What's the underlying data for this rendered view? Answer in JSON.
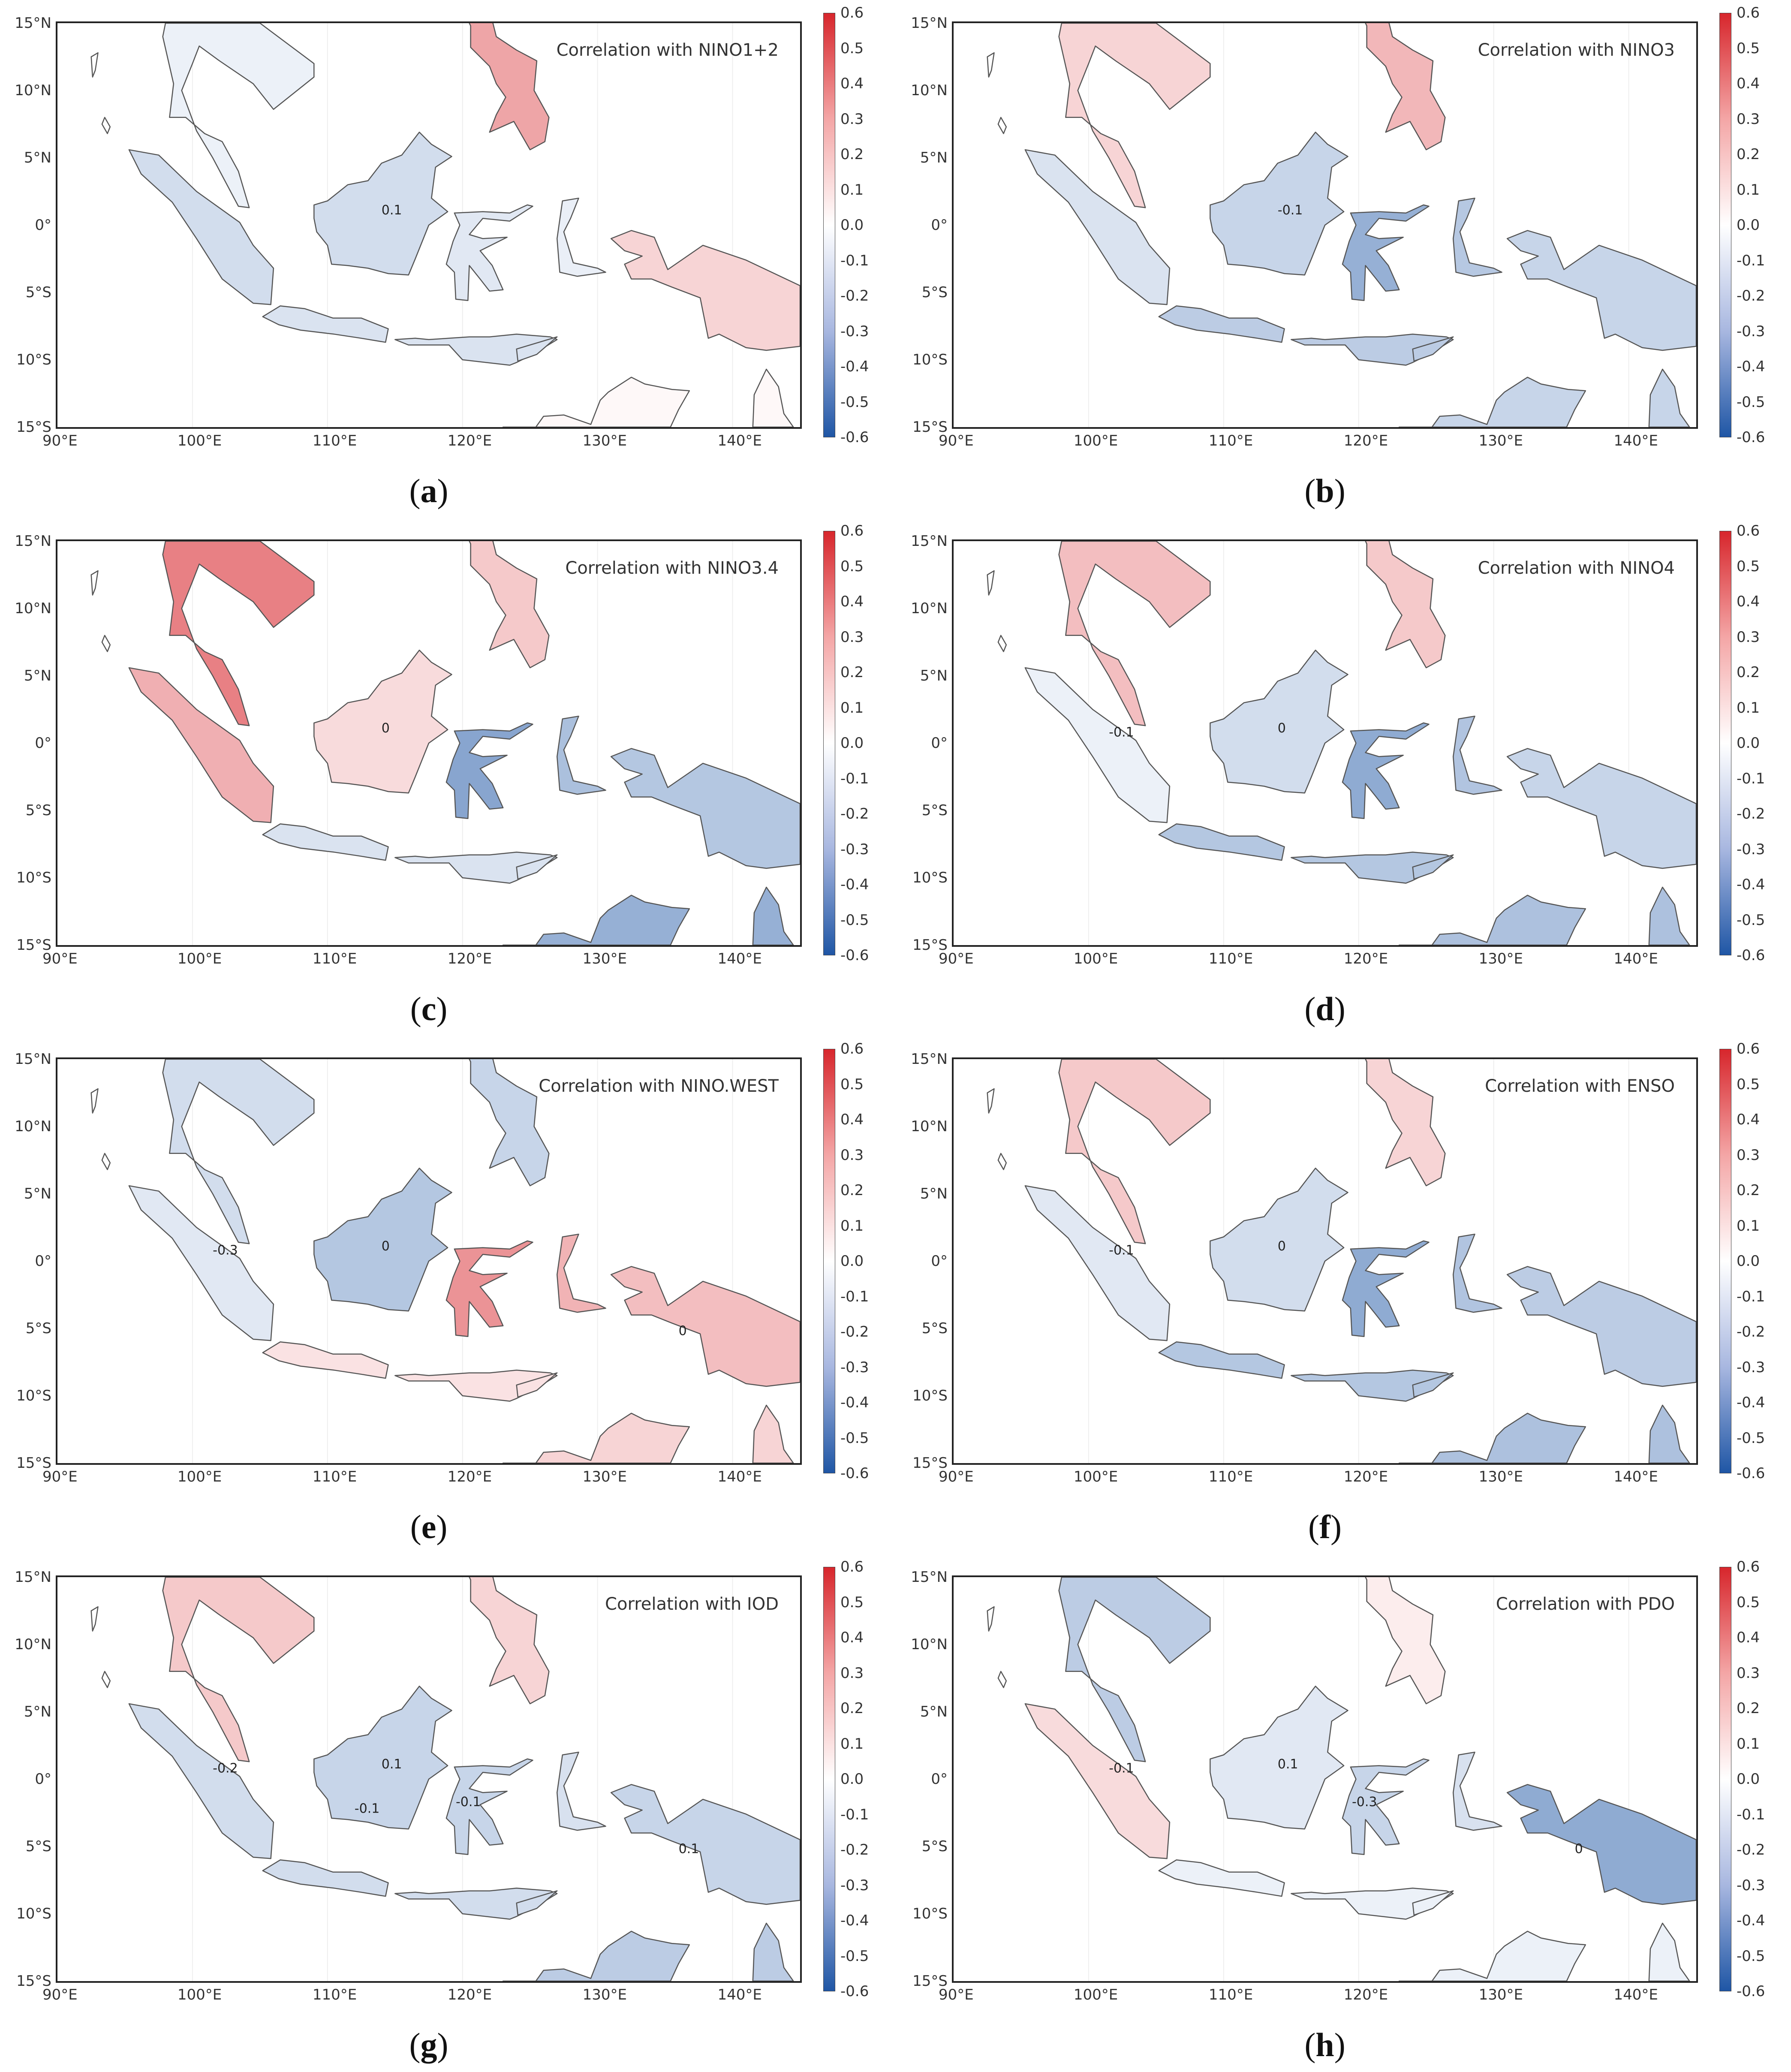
{
  "figure": {
    "x_ticks": [
      "90°E",
      "100°E",
      "110°E",
      "120°E",
      "130°E",
      "140°E"
    ],
    "y_ticks": [
      "15°N",
      "10°N",
      "5°N",
      "0°",
      "5°S",
      "10°S",
      "15°S"
    ],
    "colorbar_ticks": [
      "0.6",
      "0.5",
      "0.4",
      "0.3",
      "0.2",
      "0.1",
      "0.0",
      "-0.1",
      "-0.2",
      "-0.3",
      "-0.4",
      "-0.5",
      "-0.6"
    ],
    "colorbar_colors": {
      "max": "#d7262c",
      "mid": "#ffffff",
      "min": "#1f56a5"
    },
    "panels": [
      {
        "letter": "a",
        "title": "Correlation with NINO1+2",
        "contour_labels": [
          "0.1"
        ],
        "regions": {
          "indochina": -0.05,
          "sumatra": -0.12,
          "borneo": -0.12,
          "sulawesi": -0.08,
          "java": -0.1,
          "philippines": 0.25,
          "new_guinea": 0.12,
          "australia": 0.02
        }
      },
      {
        "letter": "b",
        "title": "Correlation with NINO3",
        "contour_labels": [
          "-0.1"
        ],
        "regions": {
          "indochina": 0.12,
          "sumatra": -0.1,
          "borneo": -0.15,
          "sulawesi": -0.28,
          "java": -0.18,
          "philippines": 0.2,
          "new_guinea": -0.15,
          "australia": -0.15
        }
      },
      {
        "letter": "c",
        "title": "Correlation with NINO3.4",
        "contour_labels": [
          "0"
        ],
        "regions": {
          "indochina": 0.35,
          "sumatra": 0.22,
          "borneo": 0.1,
          "sulawesi": -0.32,
          "java": -0.1,
          "philippines": 0.15,
          "new_guinea": -0.2,
          "australia": -0.28
        }
      },
      {
        "letter": "d",
        "title": "Correlation with NINO4",
        "contour_labels": [
          "0",
          "-0.1"
        ],
        "regions": {
          "indochina": 0.18,
          "sumatra": -0.05,
          "borneo": -0.12,
          "sulawesi": -0.3,
          "java": -0.2,
          "philippines": 0.15,
          "new_guinea": -0.15,
          "australia": -0.22
        }
      },
      {
        "letter": "e",
        "title": "Correlation with NINO.WEST",
        "contour_labels": [
          "0",
          "-0.3",
          "0"
        ],
        "regions": {
          "indochina": -0.12,
          "sumatra": -0.08,
          "borneo": -0.2,
          "sulawesi": 0.3,
          "java": 0.08,
          "philippines": -0.15,
          "new_guinea": 0.18,
          "australia": 0.12
        }
      },
      {
        "letter": "f",
        "title": "Correlation with ENSO",
        "contour_labels": [
          "0",
          "-0.1"
        ],
        "regions": {
          "indochina": 0.15,
          "sumatra": -0.08,
          "borneo": -0.12,
          "sulawesi": -0.3,
          "java": -0.2,
          "philippines": 0.12,
          "new_guinea": -0.18,
          "australia": -0.22
        }
      },
      {
        "letter": "g",
        "title": "Correlation with IOD",
        "contour_labels": [
          "0.1",
          "-0.2",
          "0.1",
          "-0.1",
          "-0.1"
        ],
        "regions": {
          "indochina": 0.15,
          "sumatra": -0.12,
          "borneo": -0.15,
          "sulawesi": -0.15,
          "java": -0.12,
          "philippines": 0.12,
          "new_guinea": -0.15,
          "australia": -0.18
        }
      },
      {
        "letter": "h",
        "title": "Correlation with PDO",
        "contour_labels": [
          "0.1",
          "-0.1",
          "0",
          "-0.3"
        ],
        "regions": {
          "indochina": -0.18,
          "sumatra": 0.1,
          "borneo": -0.08,
          "sulawesi": -0.15,
          "java": -0.05,
          "philippines": 0.05,
          "new_guinea": -0.3,
          "australia": -0.05
        }
      }
    ]
  }
}
